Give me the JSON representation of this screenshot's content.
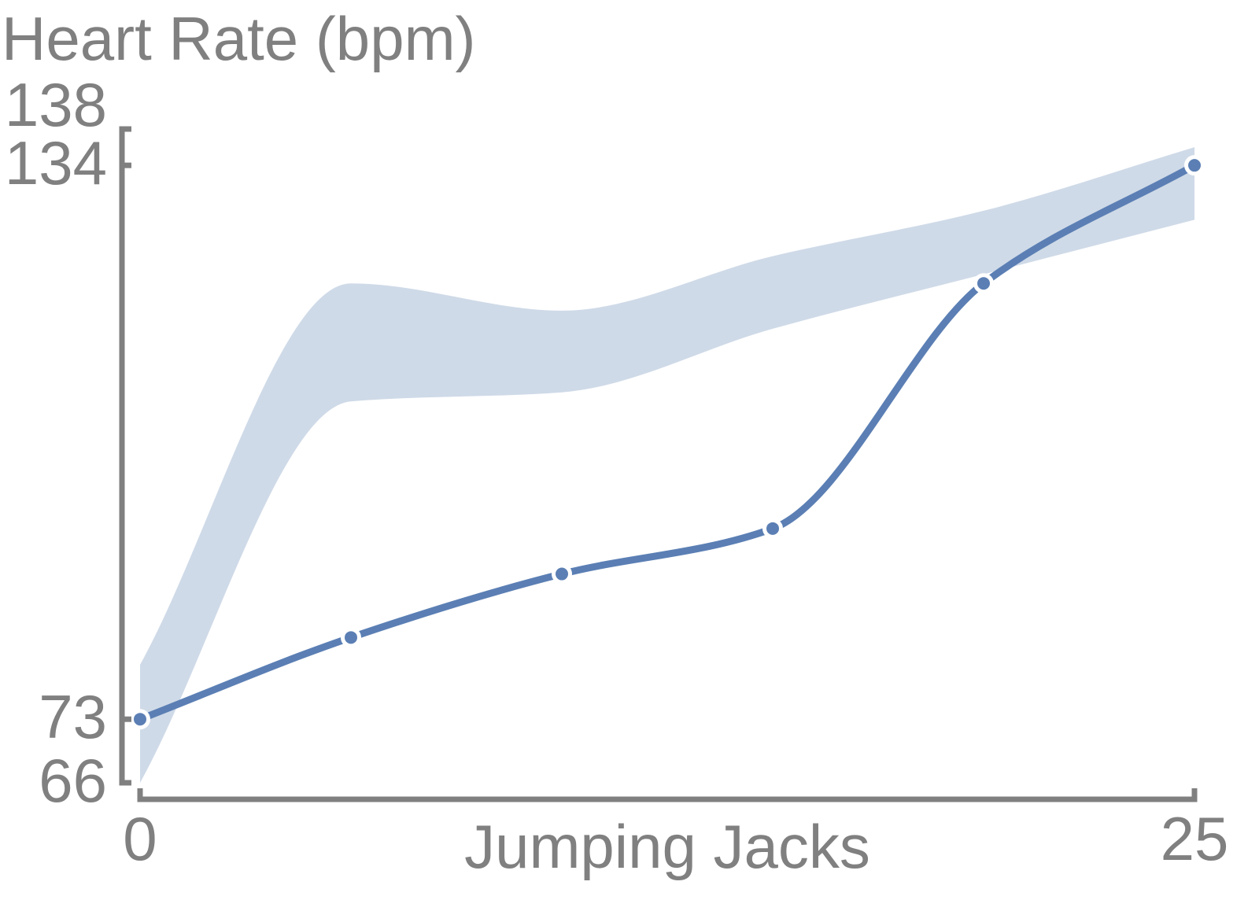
{
  "chart_data": {
    "type": "line",
    "ylabel": "Heart Rate (bpm)",
    "xlabel": "Jumping Jacks",
    "x": [
      0,
      5,
      10,
      15,
      20,
      25
    ],
    "series": [
      {
        "name": "Heart Rate",
        "values": [
          73,
          82,
          89,
          94,
          121,
          134
        ],
        "upper": [
          79,
          121,
          118,
          124,
          129,
          136
        ],
        "lower": [
          66,
          108,
          109,
          116,
          122,
          128
        ]
      }
    ],
    "x_ticks": [
      0,
      25
    ],
    "y_ticks": [
      66,
      73,
      134,
      138
    ],
    "xlim": [
      0,
      25
    ],
    "ylim": [
      66,
      138
    ],
    "colors": {
      "line": "#5b7fb4",
      "band": "#cfdae8",
      "axis": "#808080",
      "marker_edge": "#ffffff"
    }
  }
}
